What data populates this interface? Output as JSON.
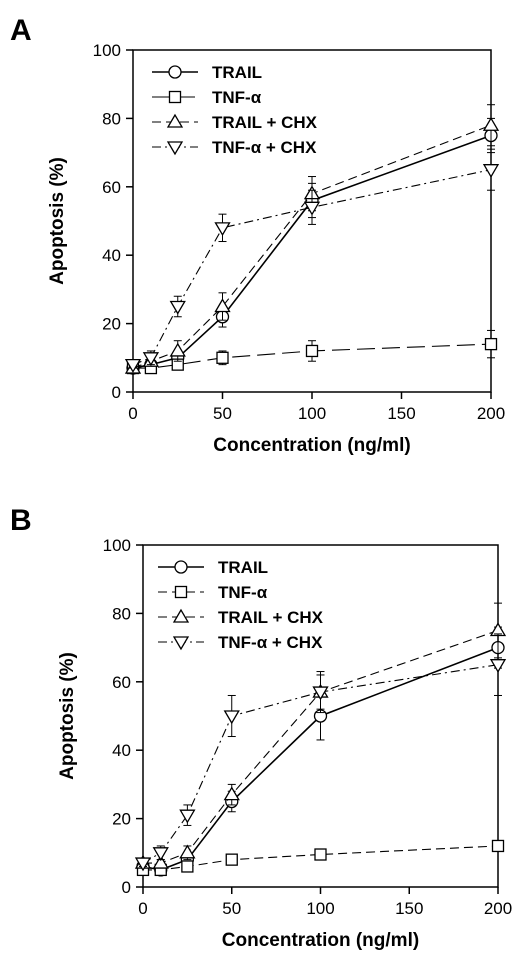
{
  "chart_data": [
    {
      "type": "line",
      "panel_label": "A",
      "xlabel": "Concentration (ng/ml)",
      "ylabel": "Apoptosis (%)",
      "xlim": [
        0,
        200
      ],
      "ylim": [
        0,
        100
      ],
      "xticks": [
        0,
        50,
        100,
        150,
        200
      ],
      "yticks": [
        0,
        20,
        40,
        60,
        80,
        100
      ],
      "grid": false,
      "legend_position": "top-left",
      "series": [
        {
          "name": "TRAIL",
          "marker": "circle",
          "dash": "solid",
          "x": [
            0,
            10,
            25,
            50,
            100,
            200
          ],
          "y": [
            7,
            8,
            10,
            22,
            56,
            75
          ],
          "err": [
            1,
            1,
            2,
            3,
            5,
            5
          ]
        },
        {
          "name": "TNF-α",
          "marker": "square",
          "dash": "longdash",
          "x": [
            0,
            10,
            25,
            50,
            100,
            200
          ],
          "y": [
            7,
            7,
            8,
            10,
            12,
            14
          ],
          "err": [
            1,
            1,
            1,
            2,
            3,
            4
          ]
        },
        {
          "name": "TRAIL + CHX",
          "marker": "triangle-up",
          "dash": "dash",
          "x": [
            0,
            10,
            25,
            50,
            100,
            200
          ],
          "y": [
            7,
            9,
            12,
            25,
            58,
            78
          ],
          "err": [
            1,
            1,
            3,
            4,
            5,
            6
          ]
        },
        {
          "name": "TNF-α + CHX",
          "marker": "triangle-down",
          "dash": "dashdot",
          "x": [
            0,
            10,
            25,
            50,
            100,
            200
          ],
          "y": [
            8,
            10,
            25,
            48,
            54,
            65
          ],
          "err": [
            1,
            2,
            3,
            4,
            5,
            6
          ]
        }
      ]
    },
    {
      "type": "line",
      "panel_label": "B",
      "xlabel": "Concentration (ng/ml)",
      "ylabel": "Apoptosis (%)",
      "xlim": [
        0,
        200
      ],
      "ylim": [
        0,
        100
      ],
      "xticks": [
        0,
        50,
        100,
        150,
        200
      ],
      "yticks": [
        0,
        20,
        40,
        60,
        80,
        100
      ],
      "grid": false,
      "legend_position": "top-left",
      "series": [
        {
          "name": "TRAIL",
          "marker": "circle",
          "dash": "solid",
          "x": [
            0,
            10,
            25,
            50,
            100,
            200
          ],
          "y": [
            6,
            5,
            8,
            25,
            50,
            70
          ],
          "err": [
            1,
            1,
            1,
            3,
            7,
            6
          ]
        },
        {
          "name": "TNF-α",
          "marker": "square",
          "dash": "dash",
          "x": [
            0,
            10,
            25,
            50,
            100,
            200
          ],
          "y": [
            5,
            5,
            6,
            8,
            9.5,
            12
          ],
          "err": [
            1,
            1,
            1,
            1,
            1,
            1
          ]
        },
        {
          "name": "TRAIL + CHX",
          "marker": "triangle-up",
          "dash": "dash",
          "x": [
            0,
            10,
            25,
            50,
            100,
            200
          ],
          "y": [
            7,
            7,
            10,
            27,
            57,
            75
          ],
          "err": [
            1,
            1,
            2,
            3,
            6,
            8
          ]
        },
        {
          "name": "TNF-α + CHX",
          "marker": "triangle-down",
          "dash": "dashdot",
          "x": [
            0,
            10,
            25,
            50,
            100,
            200
          ],
          "y": [
            7,
            10,
            21,
            50,
            57,
            65
          ],
          "err": [
            1,
            2,
            3,
            6,
            5,
            9
          ]
        }
      ]
    }
  ]
}
